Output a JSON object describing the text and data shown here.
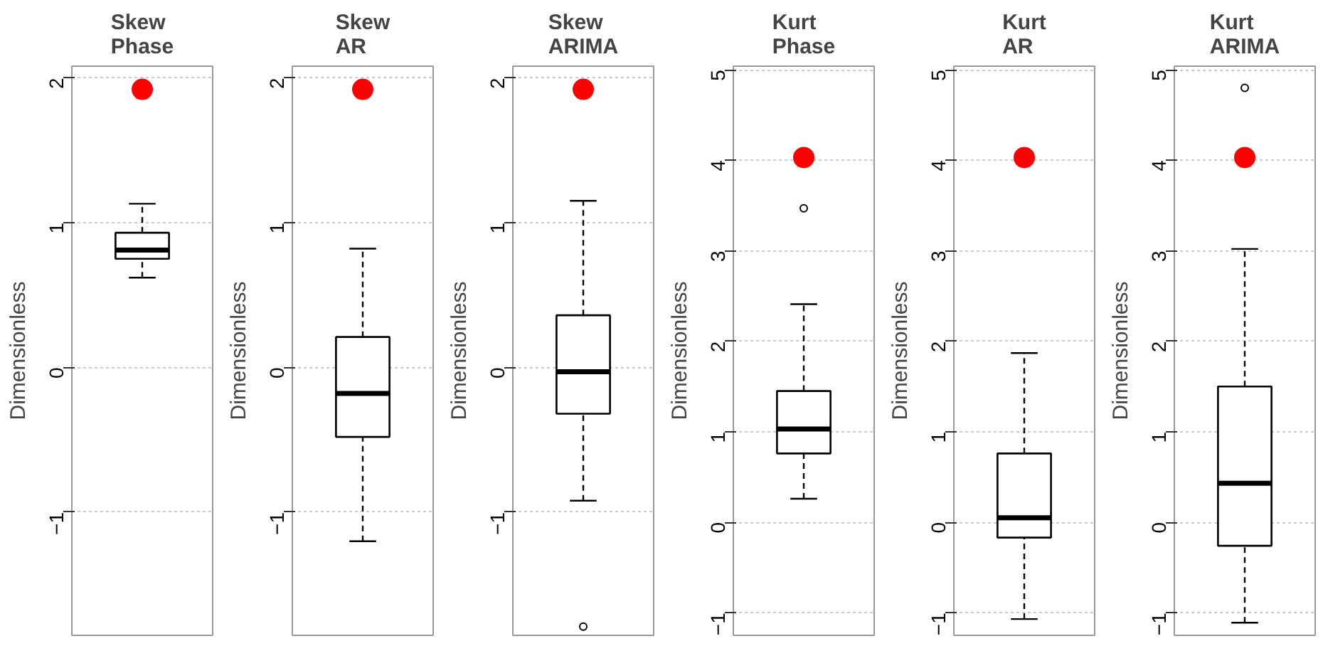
{
  "chart_data": [
    {
      "type": "box",
      "title": "Skew\nPhase",
      "ylabel": "Dimensionless",
      "categories": [
        null
      ],
      "boxes": [
        {
          "low": 0.62,
          "q1": 0.75,
          "median": 0.81,
          "q3": 0.93,
          "high": 1.13
        }
      ],
      "series": [
        {
          "type": "scatter",
          "color": "#ff0000",
          "values": [
            1.92
          ]
        }
      ],
      "ylim": [
        -1.85,
        2.08
      ],
      "yticks": [
        -1,
        0,
        1,
        2
      ],
      "grid": "y"
    },
    {
      "type": "box",
      "title": "Skew\nAR",
      "ylabel": "Dimensionless",
      "categories": [
        null
      ],
      "boxes": [
        {
          "low": -1.2,
          "q1": -0.48,
          "median": -0.18,
          "q3": 0.21,
          "high": 0.82
        }
      ],
      "series": [
        {
          "type": "scatter",
          "color": "#ff0000",
          "values": [
            1.92
          ]
        }
      ],
      "ylim": [
        -1.85,
        2.08
      ],
      "yticks": [
        -1,
        0,
        1,
        2
      ],
      "grid": "y"
    },
    {
      "type": "box",
      "title": "Skew\nARIMA",
      "ylabel": "Dimensionless",
      "categories": [
        null
      ],
      "boxes": [
        {
          "low": -0.92,
          "q1": -0.32,
          "median": -0.03,
          "q3": 0.36,
          "high": 1.15,
          "outliers": [
            -1.79
          ]
        }
      ],
      "series": [
        {
          "type": "scatter",
          "color": "#ff0000",
          "values": [
            1.92
          ]
        }
      ],
      "ylim": [
        -1.85,
        2.08
      ],
      "yticks": [
        -1,
        0,
        1,
        2
      ],
      "grid": "y"
    },
    {
      "type": "box",
      "title": "Kurt\nPhase",
      "ylabel": "Dimensionless",
      "categories": [
        null
      ],
      "boxes": [
        {
          "low": 0.26,
          "q1": 0.76,
          "median": 1.03,
          "q3": 1.45,
          "high": 2.41,
          "outliers": [
            3.47
          ]
        }
      ],
      "series": [
        {
          "type": "scatter",
          "color": "#ff0000",
          "values": [
            4.03
          ]
        }
      ],
      "ylim": [
        -1.25,
        5.04
      ],
      "yticks": [
        -1,
        0,
        1,
        2,
        3,
        4,
        5
      ],
      "grid": "y"
    },
    {
      "type": "box",
      "title": "Kurt\nAR",
      "ylabel": "Dimensionless",
      "categories": [
        null
      ],
      "boxes": [
        {
          "low": -1.07,
          "q1": -0.17,
          "median": 0.05,
          "q3": 0.76,
          "high": 1.87
        }
      ],
      "series": [
        {
          "type": "scatter",
          "color": "#ff0000",
          "values": [
            4.03
          ]
        }
      ],
      "ylim": [
        -1.25,
        5.04
      ],
      "yticks": [
        -1,
        0,
        1,
        2,
        3,
        4,
        5
      ],
      "grid": "y"
    },
    {
      "type": "box",
      "title": "Kurt\nARIMA",
      "ylabel": "Dimensionless",
      "categories": [
        null
      ],
      "boxes": [
        {
          "low": -1.11,
          "q1": -0.26,
          "median": 0.43,
          "q3": 1.5,
          "high": 3.02,
          "outliers": [
            4.8
          ]
        }
      ],
      "series": [
        {
          "type": "scatter",
          "color": "#ff0000",
          "values": [
            4.03
          ]
        }
      ],
      "ylim": [
        -1.25,
        5.04
      ],
      "yticks": [
        -1,
        0,
        1,
        2,
        3,
        4,
        5
      ],
      "grid": "y"
    }
  ]
}
